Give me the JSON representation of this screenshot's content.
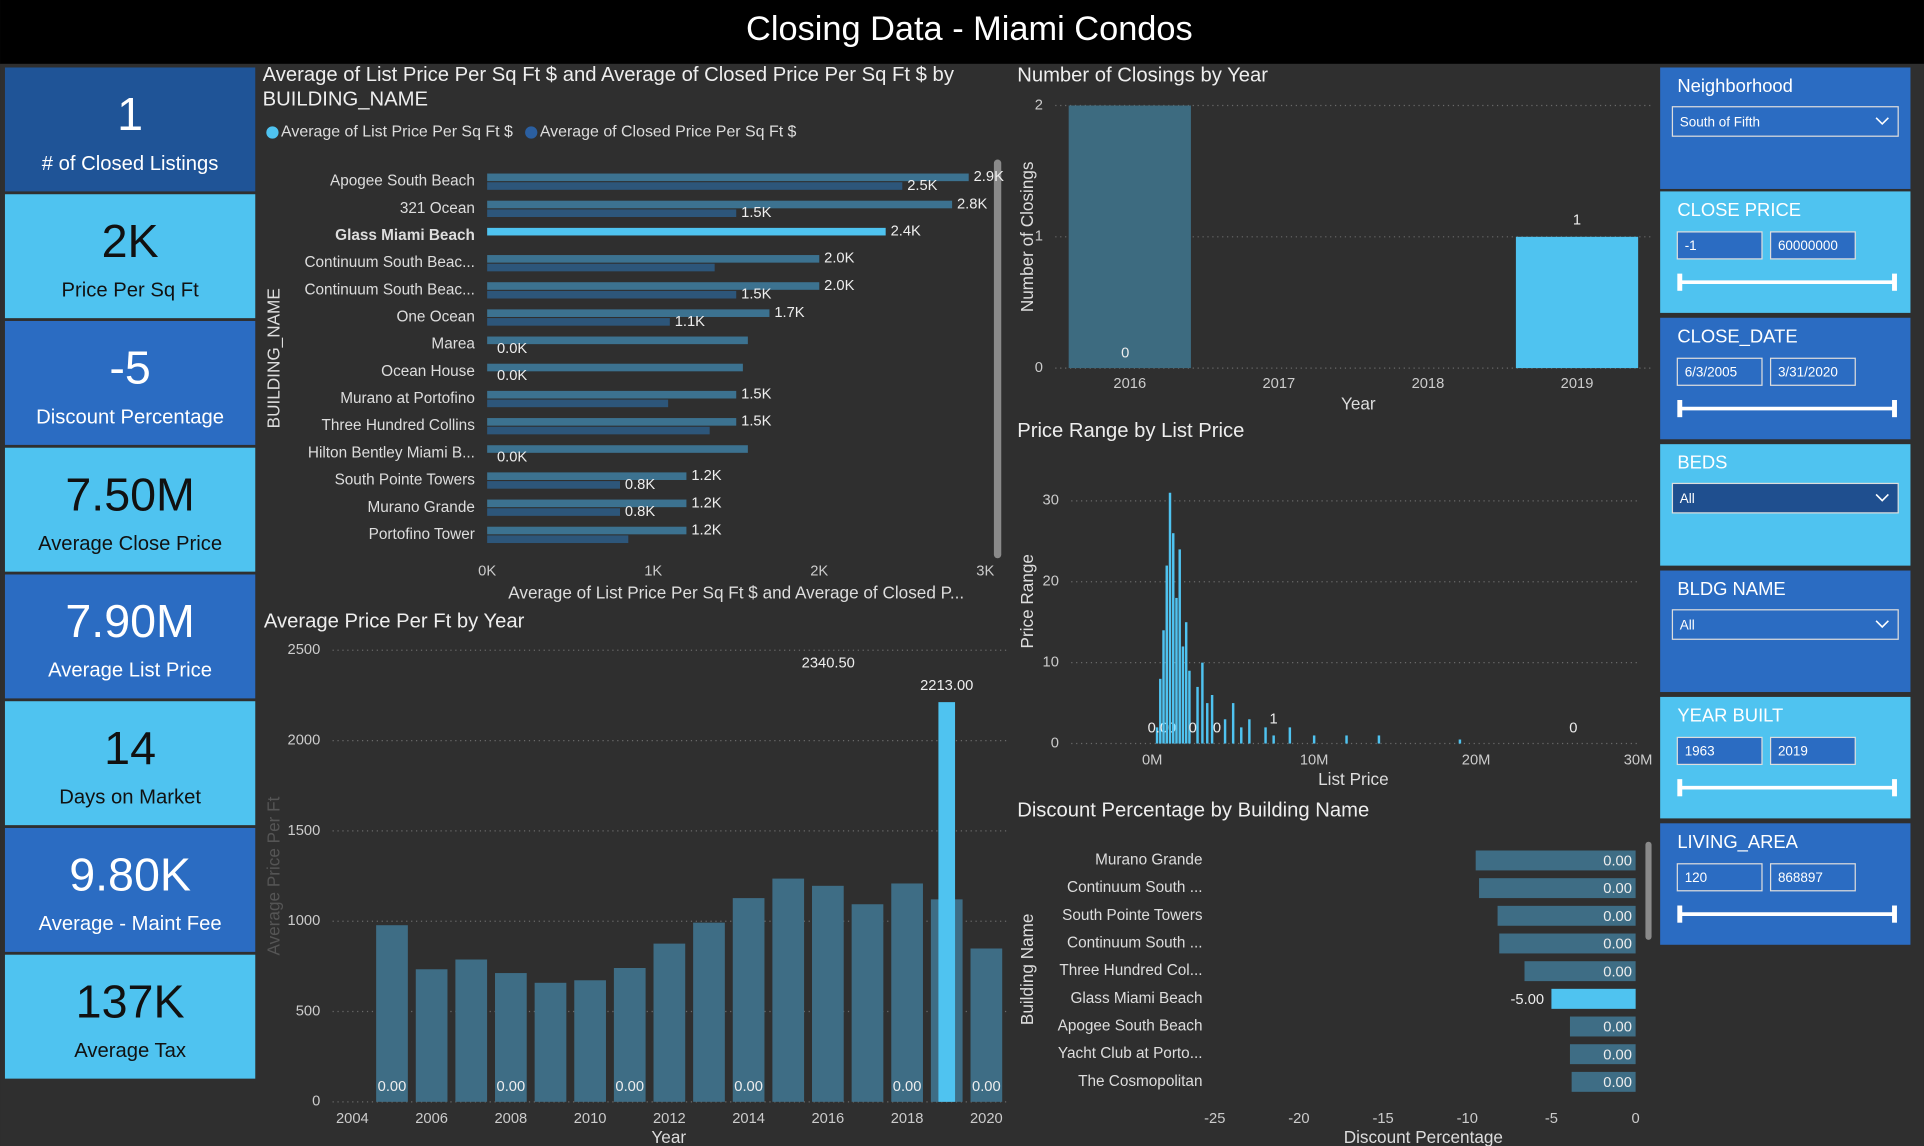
{
  "title": "Closing Data - Miami Condos",
  "cards": [
    {
      "value": "1",
      "label": "# of Closed Listings"
    },
    {
      "value": "2K",
      "label": "Price Per Sq Ft"
    },
    {
      "value": "-5",
      "label": "Discount Percentage"
    },
    {
      "value": "7.50M",
      "label": "Average Close Price"
    },
    {
      "value": "7.90M",
      "label": "Average List Price"
    },
    {
      "value": "14",
      "label": "Days on Market"
    },
    {
      "value": "9.80K",
      "label": "Average - Maint Fee"
    },
    {
      "value": "137K",
      "label": "Average Tax"
    }
  ],
  "slicers": [
    {
      "title": "Neighborhood",
      "values": [
        "South of Fifth"
      ]
    },
    {
      "title": "CLOSE PRICE",
      "values": [
        "-1",
        "60000000"
      ]
    },
    {
      "title": "CLOSE_DATE",
      "values": [
        "6/3/2005",
        "3/31/2020"
      ]
    },
    {
      "title": "BEDS",
      "values": [
        "All"
      ]
    },
    {
      "title": "BLDG NAME",
      "values": [
        "All"
      ]
    },
    {
      "title": "YEAR BUILT",
      "values": [
        "1963",
        "2019"
      ]
    },
    {
      "title": "LIVING_AREA",
      "values": [
        "120",
        "868897"
      ]
    }
  ],
  "chart_data": [
    {
      "type": "bar",
      "orientation": "horizontal",
      "barmode": "group",
      "legend": true,
      "grid": false,
      "title": "Average of List Price Per Sq Ft $ and Average of Closed Price Per Sq Ft $ by BUILDING_NAME",
      "xlabel": "Average of List Price Per Sq Ft $ and Average of Closed P...",
      "ylabel": "BUILDING_NAME",
      "categories": [
        "Apogee South Beach",
        "321 Ocean",
        "Glass Miami Beach",
        "Continuum South Beac...",
        "Continuum South Beac...",
        "One Ocean",
        "Marea",
        "Ocean House",
        "Murano at Portofino",
        "Three Hundred Collins",
        "Hilton Bentley Miami B...",
        "South Pointe Towers",
        "Murano Grande",
        "Portofino Tower"
      ],
      "xlim": [
        0,
        3000
      ],
      "xticks": [
        {
          "value": 0,
          "label": "0K"
        },
        {
          "value": 1000,
          "label": "1K"
        },
        {
          "value": 2000,
          "label": "2K"
        },
        {
          "value": 3000,
          "label": "3K"
        }
      ],
      "series": [
        {
          "name": "Average of List Price Per Sq Ft $",
          "color": "#4fc3f0",
          "colors": [
            "#3c7290",
            "#3c7290",
            "#4fc3f0",
            "#3c7290",
            "#3c7290",
            "#3c7290",
            "#3c7290",
            "#3c7290",
            "#3c7290",
            "#3c7290",
            "#3c7290",
            "#3c7290",
            "#3c7290",
            "#3c7290"
          ],
          "values": [
            2900,
            2800,
            2400,
            2000,
            2000,
            1700,
            1570,
            1540,
            1500,
            1500,
            1570,
            1200,
            1200,
            1200
          ],
          "value_labels": [
            "2.9K",
            "2.8K",
            "2.4K",
            "2.0K",
            "2.0K",
            "1.7K",
            null,
            null,
            "1.5K",
            "1.5K",
            null,
            "1.2K",
            "1.2K",
            "1.2K"
          ]
        },
        {
          "name": "Average of Closed Price Per Sq Ft $",
          "color": "#2b5fa0",
          "colors": [
            "#2d567a",
            "#2d567a",
            "#2d567a",
            "#2d567a",
            "#2d567a",
            "#2d567a",
            "#2d567a",
            "#2d567a",
            "#2d567a",
            "#2d567a",
            "#2d567a",
            "#2d567a",
            "#2d567a",
            "#2d567a"
          ],
          "values": [
            2500,
            1500,
            null,
            1370,
            1500,
            1100,
            0,
            0,
            1090,
            1340,
            0,
            800,
            800,
            850
          ],
          "value_labels": [
            "2.5K",
            "1.5K",
            null,
            null,
            "1.5K",
            "1.1K",
            "0.0K",
            "0.0K",
            null,
            null,
            "0.0K",
            "0.8K",
            "0.8K",
            null
          ]
        }
      ]
    },
    {
      "type": "bar",
      "grid": true,
      "title": "Number of Closings by Year",
      "xlabel": "Year",
      "ylabel": "Number of Closings",
      "categories": [
        "2016",
        "2017",
        "2018",
        "2019"
      ],
      "values": [
        2,
        null,
        null,
        1
      ],
      "value_labels": [
        null,
        null,
        null,
        "1"
      ],
      "colors": [
        "#3d6b80",
        "#3d6b80",
        "#3d6b80",
        "#4fc3f0"
      ],
      "annotations": [
        "0"
      ],
      "ylim": [
        0,
        2
      ],
      "yticks": [
        0,
        1,
        2
      ]
    },
    {
      "type": "bar",
      "grid": true,
      "title": "Price Range by List Price",
      "xlabel": "List Price",
      "ylabel": "Price Range",
      "x": [
        300000,
        500000,
        600000,
        700000,
        900000,
        1100000,
        1300000,
        1500000,
        1700000,
        1900000,
        2100000,
        2300000,
        2500000,
        2800000,
        3100000,
        3400000,
        3700000,
        4000000,
        4500000,
        5000000,
        5500000,
        6000000,
        7000000,
        7500000,
        8500000,
        10000000,
        12000000,
        14000000,
        19000000,
        26000000
      ],
      "values": [
        2,
        8,
        0,
        14,
        22,
        31,
        26,
        18,
        24,
        12,
        15,
        9,
        0,
        7,
        10,
        5,
        6,
        0,
        3,
        5,
        2,
        3,
        2,
        1,
        2,
        1,
        1,
        1,
        0.5,
        0
      ],
      "value_labels": [
        null,
        null,
        "0.00",
        null,
        null,
        null,
        null,
        null,
        null,
        null,
        null,
        null,
        "0",
        null,
        null,
        null,
        null,
        "0",
        null,
        null,
        null,
        null,
        null,
        "1",
        null,
        null,
        null,
        null,
        null,
        "0"
      ],
      "color": "#4fc3f0",
      "xlim": [
        -5000000,
        30000000
      ],
      "xticks": [
        {
          "value": 0,
          "label": "0M"
        },
        {
          "value": 10000000,
          "label": "10M"
        },
        {
          "value": 20000000,
          "label": "20M"
        },
        {
          "value": 30000000,
          "label": "30M"
        }
      ],
      "ylim": [
        0,
        32
      ],
      "yticks": [
        0,
        10,
        20,
        30
      ]
    },
    {
      "type": "bar",
      "barmode": "overlay",
      "grid": true,
      "title": "Average Price Per Ft by Year",
      "xlabel": "Year",
      "ylabel": "Average Price Per Ft",
      "x": [
        2005,
        2006,
        2007,
        2008,
        2009,
        2010,
        2011,
        2012,
        2013,
        2014,
        2015,
        2016,
        2017,
        2018,
        2019,
        2020
      ],
      "series": [
        {
          "color": "#3e6d85",
          "values": [
            978,
            734,
            788,
            713,
            659,
            673,
            741,
            876,
            992,
            1128,
            1236,
            1196,
            1094,
            1209,
            1121,
            849
          ]
        },
        {
          "color": "#4fc3f0",
          "values": [
            0,
            null,
            null,
            0,
            null,
            null,
            0,
            null,
            null,
            0,
            null,
            null,
            null,
            0,
            2213,
            0
          ],
          "value_labels": [
            "0.00",
            null,
            null,
            "0.00",
            null,
            null,
            "0.00",
            null,
            null,
            "0.00",
            null,
            null,
            null,
            "0.00",
            "2213.00",
            "0.00"
          ]
        }
      ],
      "annotations": [
        "2340.50"
      ],
      "xlim": [
        2003.5,
        2020.5
      ],
      "xticks": [
        2004,
        2006,
        2008,
        2010,
        2012,
        2014,
        2016,
        2018,
        2020
      ],
      "ylim": [
        0,
        2500
      ],
      "yticks": [
        0,
        500,
        1000,
        1500,
        2000,
        2500
      ]
    },
    {
      "type": "bar",
      "orientation": "horizontal",
      "barmode": "overlay",
      "grid": false,
      "title": "Discount Percentage by Building Name",
      "xlabel": "Discount Percentage",
      "ylabel": "Building Name",
      "categories": [
        "Murano Grande",
        "Continuum South ...",
        "South Pointe Towers",
        "Continuum South ...",
        "Three Hundred Col...",
        "Glass Miami Beach",
        "Apogee South Beach",
        "Yacht Club at Porto...",
        "The Cosmopolitan"
      ],
      "series": [
        {
          "color": "#3e6d85",
          "values": [
            -9.5,
            -9.3,
            -8.2,
            -8.1,
            -6.6,
            -5,
            -3.9,
            -3.9,
            -3.8
          ]
        },
        {
          "color": "#4fc3f0",
          "values": [
            0,
            0,
            0,
            0,
            0,
            -5,
            0,
            0,
            0
          ],
          "value_labels": [
            "0.00",
            "0.00",
            "0.00",
            "0.00",
            "0.00",
            "-5.00",
            "0.00",
            "0.00",
            "0.00"
          ]
        }
      ],
      "xlim": [
        -25,
        0
      ],
      "xticks": [
        -25,
        -20,
        -15,
        -10,
        -5,
        0
      ]
    }
  ]
}
